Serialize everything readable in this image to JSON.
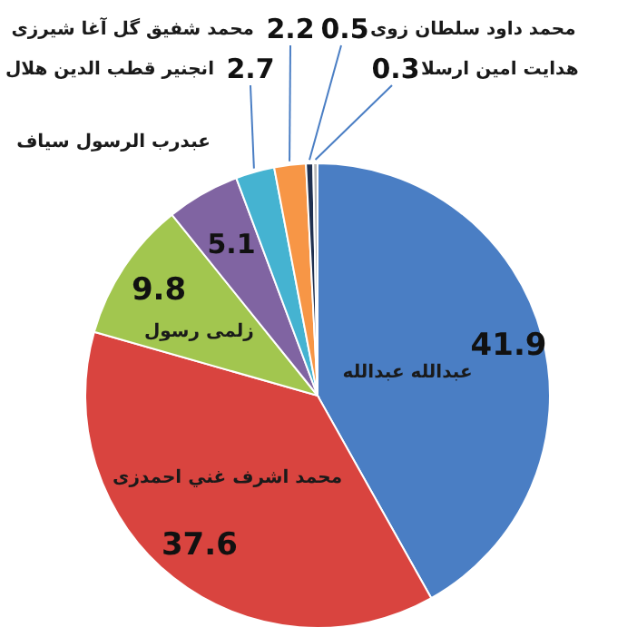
{
  "chart_data": {
    "type": "pie",
    "categories": [
      "عبدالله عبدالله",
      "محمد اشرف غني احمدزی",
      "زلمی رسول",
      "عبدرب الرسول سیاف",
      "انجنیر قطب الدین هلال",
      "محمد شفیق گل آغا شیرزی",
      "محمد داود سلطان زوی",
      "هدایت امین ارسلا"
    ],
    "values": [
      41.9,
      37.6,
      9.8,
      5.1,
      2.7,
      2.2,
      0.5,
      0.3
    ],
    "colors": [
      "#4a7ec4",
      "#d9443f",
      "#a2c64f",
      "#8064a2",
      "#45b3d1",
      "#f79646",
      "#1f3050",
      "#b8b8b8"
    ],
    "data_labels": true
  }
}
